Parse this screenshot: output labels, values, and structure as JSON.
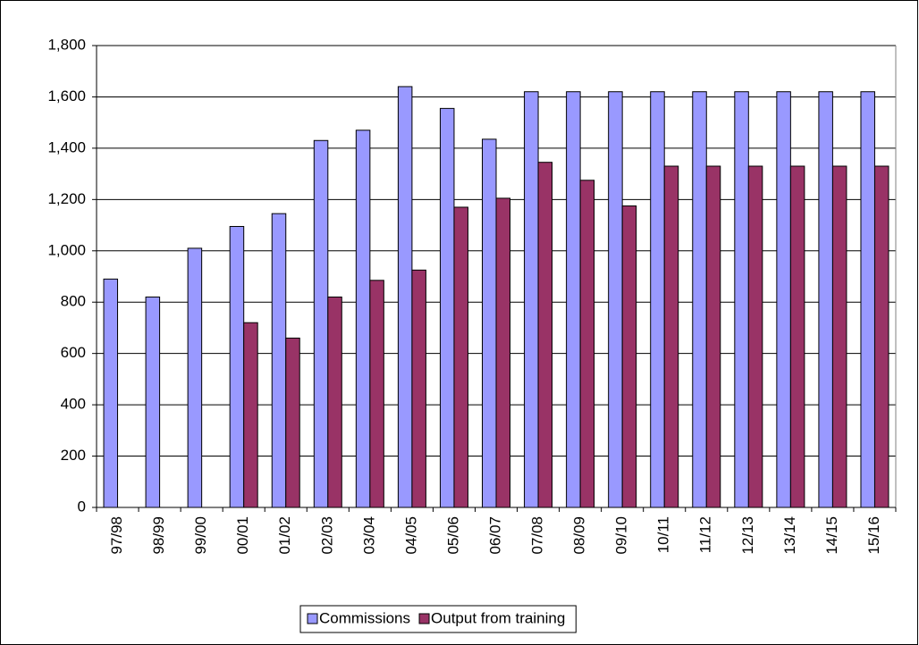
{
  "chart_data": {
    "type": "bar",
    "categories": [
      "97/98",
      "98/99",
      "99/00",
      "00/01",
      "01/02",
      "02/03",
      "03/04",
      "04/05",
      "05/06",
      "06/07",
      "07/08",
      "08/09",
      "09/10",
      "10/11",
      "11/12",
      "12/13",
      "13/14",
      "14/15",
      "15/16"
    ],
    "series": [
      {
        "name": "Commissions",
        "color": "#9999ff",
        "values": [
          890,
          820,
          1010,
          1095,
          1145,
          1430,
          1470,
          1640,
          1555,
          1435,
          1620,
          1620,
          1620,
          1620,
          1620,
          1620,
          1620,
          1620,
          1620
        ]
      },
      {
        "name": "Output from training",
        "color": "#993366",
        "values": [
          null,
          null,
          null,
          720,
          660,
          820,
          885,
          925,
          1170,
          1205,
          1345,
          1275,
          1175,
          1330,
          1330,
          1330,
          1330,
          1330,
          1330
        ]
      }
    ],
    "ylim": [
      0,
      1800
    ],
    "yticks": [
      0,
      200,
      400,
      600,
      800,
      {
        "value": 1000,
        "label": "1,000"
      },
      {
        "value": 1200,
        "label": "1,200"
      },
      {
        "value": 1400,
        "label": "1,400"
      },
      {
        "value": 1600,
        "label": "1,600"
      },
      {
        "value": 1800,
        "label": "1,800"
      }
    ],
    "grid": true,
    "legend": "bottom"
  }
}
